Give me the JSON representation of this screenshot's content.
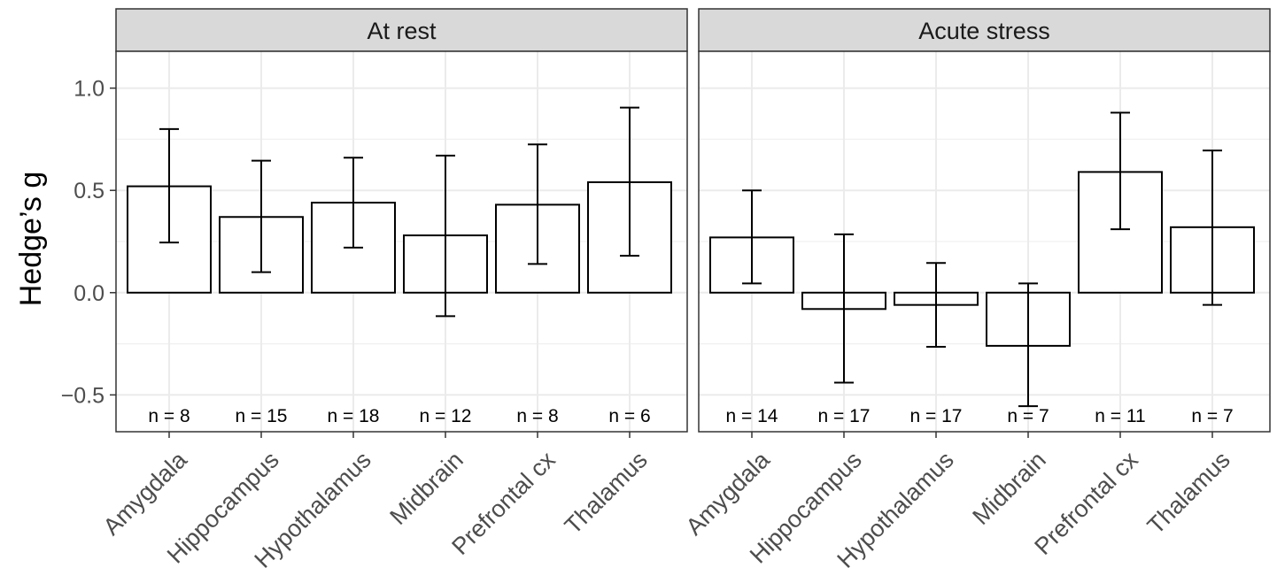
{
  "chart_data": {
    "type": "bar",
    "ylabel": "Hedge’s g",
    "ylim": [
      -0.68,
      1.18
    ],
    "yticks": [
      -0.5,
      0.0,
      0.5,
      1.0
    ],
    "ytick_labels": [
      "−0.5",
      "0.0",
      "0.5",
      "1.0"
    ],
    "grid": true,
    "categories": [
      "Amygdala",
      "Hippocampus",
      "Hypothalamus",
      "Midbrain",
      "Prefrontal cx",
      "Thalamus"
    ],
    "panels": [
      {
        "title": "At rest",
        "values": [
          0.52,
          0.37,
          0.44,
          0.28,
          0.43,
          0.54
        ],
        "ci_low": [
          0.245,
          0.1,
          0.22,
          -0.115,
          0.14,
          0.18
        ],
        "ci_high": [
          0.8,
          0.645,
          0.66,
          0.67,
          0.725,
          0.905
        ],
        "n_labels": [
          "n =  8",
          "n =  15",
          "n =  18",
          "n =  12",
          "n =  8",
          "n =  6"
        ]
      },
      {
        "title": "Acute stress",
        "values": [
          0.27,
          -0.08,
          -0.06,
          -0.26,
          0.59,
          0.32
        ],
        "ci_low": [
          0.045,
          -0.44,
          -0.265,
          -0.555,
          0.31,
          -0.06
        ],
        "ci_high": [
          0.5,
          0.285,
          0.145,
          0.045,
          0.88,
          0.695
        ],
        "n_labels": [
          "n =  14",
          "n =  17",
          "n =  17",
          "n =  7",
          "n =  11",
          "n =  7"
        ]
      }
    ]
  }
}
